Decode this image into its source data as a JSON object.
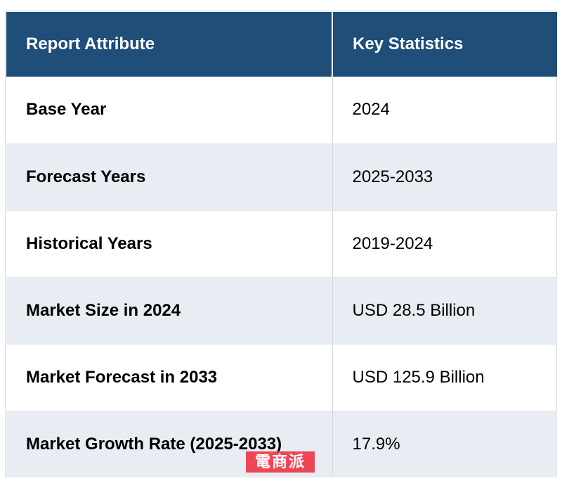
{
  "table": {
    "headers": [
      "Report Attribute",
      "Key Statistics"
    ],
    "rows": [
      {
        "attribute": "Base Year",
        "value": "2024"
      },
      {
        "attribute": "Forecast Years",
        "value": "2025-2033"
      },
      {
        "attribute": "Historical Years",
        "value": "2019-2024"
      },
      {
        "attribute": "Market Size in 2024",
        "value": "USD 28.5 Billion"
      },
      {
        "attribute": "Market Forecast in 2033",
        "value": "USD 125.9 Billion"
      },
      {
        "attribute": "Market Growth Rate (2025-2033)",
        "value": "17.9%"
      }
    ]
  },
  "colors": {
    "header_bg": "#1f4e79",
    "header_text": "#ffffff",
    "alt_row_bg": "#e8ecf3",
    "watermark_bg": "#ee3a4a"
  },
  "watermark": {
    "text": "電商派"
  }
}
